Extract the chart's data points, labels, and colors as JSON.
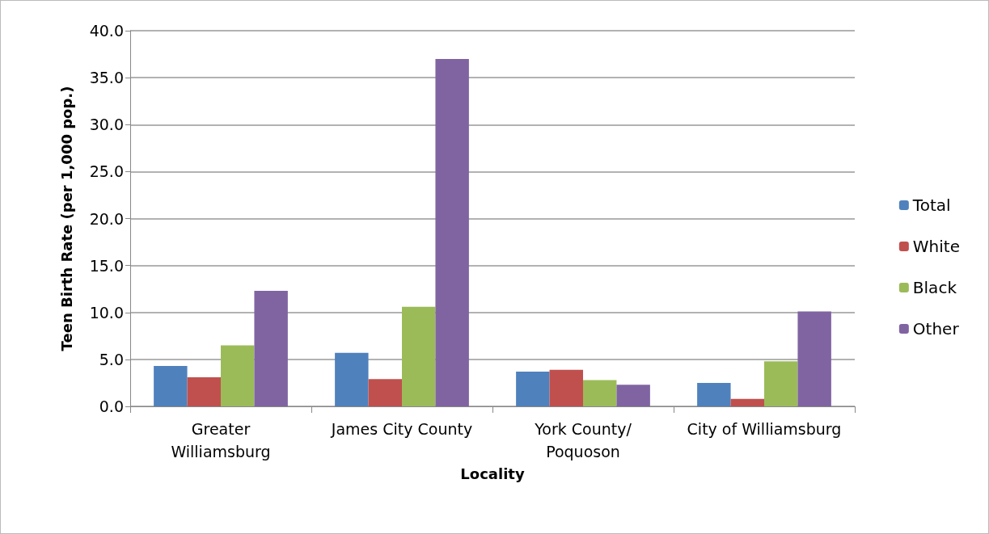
{
  "chart_data": {
    "type": "bar",
    "xlabel": "Locality",
    "ylabel": "Teen Birth Rate (per 1,000 pop.)",
    "categories": [
      "Greater\nWilliamsburg",
      "James City County",
      "York County/\nPoquoson",
      "City of Williamsburg"
    ],
    "series": [
      {
        "name": "Total",
        "color": "#4f81bd",
        "values": [
          4.3,
          5.7,
          3.7,
          2.5
        ]
      },
      {
        "name": "White",
        "color": "#c0504d",
        "values": [
          3.1,
          2.9,
          3.9,
          0.8
        ]
      },
      {
        "name": "Black",
        "color": "#9bbb59",
        "values": [
          6.5,
          10.6,
          2.8,
          4.8
        ]
      },
      {
        "name": "Other",
        "color": "#8064a2",
        "values": [
          12.3,
          37.0,
          2.3,
          10.1
        ]
      }
    ],
    "ylim": [
      0,
      40
    ],
    "yticks": [
      {
        "value": 0,
        "label": "0.0"
      },
      {
        "value": 5,
        "label": "5.0"
      },
      {
        "value": 10,
        "label": "10.0"
      },
      {
        "value": 15,
        "label": "15.0"
      },
      {
        "value": 20,
        "label": "20.0"
      },
      {
        "value": 25,
        "label": "25.0"
      },
      {
        "value": 30,
        "label": "30.0"
      },
      {
        "value": 35,
        "label": "35.0"
      },
      {
        "value": 40,
        "label": "40.0"
      }
    ],
    "grid": "y",
    "legend": "right"
  }
}
